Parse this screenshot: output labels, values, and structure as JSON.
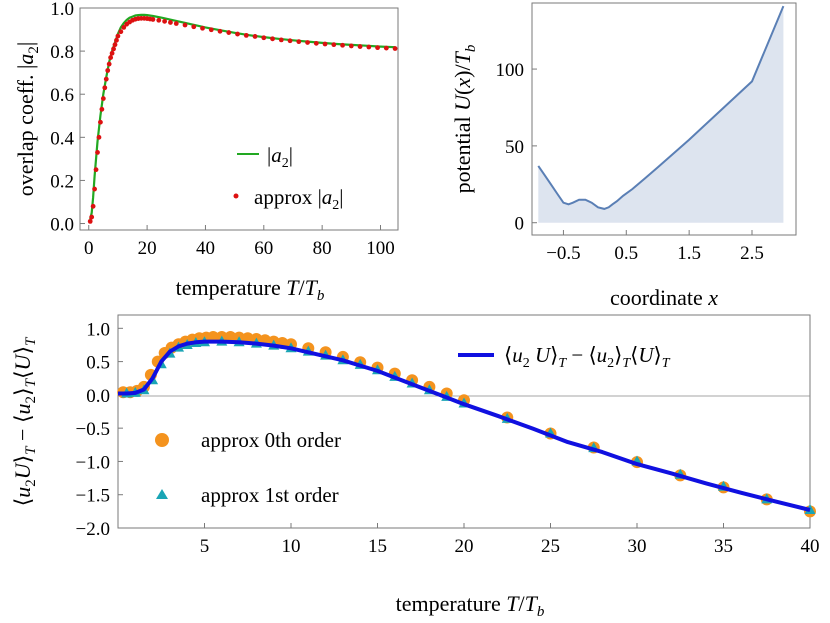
{
  "chart_data": [
    {
      "id": "overlap",
      "type": "scatter",
      "xlabel": "temperature T/T_b",
      "ylabel": "overlap coeff. |a_2|",
      "xlim": [
        -3,
        106
      ],
      "ylim": [
        -0.03,
        1.0
      ],
      "xticks": [
        "0",
        "20",
        "40",
        "60",
        "80",
        "100"
      ],
      "yticks": [
        "0.0",
        "0.2",
        "0.4",
        "0.6",
        "0.8",
        "1.0"
      ],
      "legend_position": "lower-right",
      "series": [
        {
          "name": "|a_2|",
          "kind": "line",
          "color": "#22a822",
          "x": [
            0.5,
            1,
            1.5,
            2,
            3,
            4,
            5,
            6,
            7,
            8,
            9,
            10,
            11,
            12,
            13,
            14,
            15,
            16,
            17,
            18,
            19,
            20,
            22,
            25,
            30,
            35,
            40,
            45,
            50,
            55,
            60,
            65,
            70,
            75,
            80,
            85,
            90,
            95,
            100,
            105
          ],
          "y": [
            0.02,
            0.05,
            0.12,
            0.22,
            0.38,
            0.5,
            0.6,
            0.68,
            0.75,
            0.8,
            0.84,
            0.88,
            0.91,
            0.93,
            0.945,
            0.955,
            0.96,
            0.965,
            0.967,
            0.968,
            0.968,
            0.967,
            0.963,
            0.955,
            0.94,
            0.925,
            0.91,
            0.897,
            0.885,
            0.874,
            0.865,
            0.857,
            0.85,
            0.844,
            0.838,
            0.833,
            0.829,
            0.825,
            0.821,
            0.818
          ]
        },
        {
          "name": "approx |a_2|",
          "kind": "points",
          "color": "#dd1111",
          "x": [
            0.5,
            1,
            1.5,
            2,
            2.5,
            3,
            3.5,
            4,
            4.5,
            5,
            5.5,
            6,
            6.5,
            7,
            7.5,
            8,
            8.5,
            9,
            9.5,
            10,
            11,
            12,
            13,
            14,
            15,
            16,
            17,
            18,
            19,
            20,
            21,
            22,
            24,
            26,
            28,
            30,
            33,
            36,
            39,
            42,
            45,
            48,
            51,
            54,
            57,
            60,
            63,
            66,
            69,
            72,
            75,
            78,
            81,
            84,
            87,
            90,
            93,
            96,
            99,
            102,
            105
          ],
          "y": [
            0.01,
            0.03,
            0.08,
            0.16,
            0.25,
            0.33,
            0.4,
            0.47,
            0.53,
            0.58,
            0.63,
            0.67,
            0.71,
            0.74,
            0.77,
            0.79,
            0.81,
            0.83,
            0.85,
            0.87,
            0.89,
            0.91,
            0.925,
            0.935,
            0.943,
            0.948,
            0.951,
            0.952,
            0.952,
            0.951,
            0.949,
            0.947,
            0.943,
            0.938,
            0.933,
            0.928,
            0.921,
            0.913,
            0.906,
            0.899,
            0.892,
            0.886,
            0.879,
            0.873,
            0.868,
            0.862,
            0.857,
            0.852,
            0.848,
            0.844,
            0.84,
            0.836,
            0.833,
            0.83,
            0.827,
            0.824,
            0.821,
            0.819,
            0.816,
            0.814,
            0.812
          ]
        }
      ]
    },
    {
      "id": "potential",
      "type": "area",
      "xlabel": "coordinate x",
      "ylabel": "potential U(x)/T_b",
      "xlim": [
        -1.0,
        3.2
      ],
      "ylim": [
        -8,
        143
      ],
      "xticks": [
        "-0.5",
        "0.5",
        "1.5",
        "2.5"
      ],
      "yticks": [
        "0",
        "50",
        "100"
      ],
      "series": [
        {
          "name": "U(x)",
          "color": "#5a7fb5",
          "fill": "#dde4ef",
          "x": [
            -0.9,
            -0.8,
            -0.7,
            -0.6,
            -0.5,
            -0.42,
            -0.35,
            -0.25,
            -0.15,
            -0.05,
            0.05,
            0.15,
            0.22,
            0.28,
            0.35,
            0.45,
            0.6,
            0.8,
            1.0,
            1.5,
            2.0,
            2.5,
            3.0
          ],
          "y": [
            37,
            31,
            25,
            19,
            13,
            12,
            13,
            15,
            15,
            13,
            10,
            9,
            10,
            12,
            14,
            17.5,
            22,
            29,
            36,
            54,
            73,
            92,
            141
          ]
        }
      ]
    },
    {
      "id": "covariance",
      "type": "line",
      "xlabel": "temperature T/T_b",
      "ylabel": "<u_2 U>_T - <u_2>_T <U>_T",
      "xlim": [
        0,
        40
      ],
      "ylim": [
        -2.0,
        1.2
      ],
      "xticks": [
        "5",
        "10",
        "15",
        "20",
        "25",
        "30",
        "35",
        "40"
      ],
      "yticks": [
        "1.0",
        "0.5",
        "0.0",
        "-0.5",
        "-1.0",
        "-1.5",
        "-2.0"
      ],
      "legend_position": "top-right and lower-left",
      "series": [
        {
          "name": "<u_2 U>_T - <u_2>_T <U>_T",
          "kind": "line",
          "color": "#1010e0",
          "x": [
            0,
            0.5,
            1,
            1.5,
            2,
            2.5,
            3,
            3.5,
            4,
            4.5,
            5,
            6,
            7,
            8,
            9,
            10,
            11,
            12,
            13,
            14,
            15,
            16,
            17,
            18,
            19,
            20,
            22,
            24,
            26,
            28,
            30,
            32,
            34,
            36,
            38,
            40
          ],
          "y": [
            0.02,
            0.02,
            0.03,
            0.08,
            0.25,
            0.5,
            0.65,
            0.73,
            0.77,
            0.79,
            0.8,
            0.8,
            0.79,
            0.77,
            0.74,
            0.7,
            0.64,
            0.58,
            0.52,
            0.44,
            0.36,
            0.26,
            0.16,
            0.06,
            -0.04,
            -0.14,
            -0.32,
            -0.51,
            -0.71,
            -0.86,
            -1.04,
            -1.18,
            -1.33,
            -1.47,
            -1.6,
            -1.73
          ]
        },
        {
          "name": "approx 0th order",
          "kind": "points",
          "marker": "circle",
          "color": "#f4931e",
          "x": [
            0.3,
            0.7,
            1.1,
            1.5,
            1.9,
            2.3,
            2.7,
            3.1,
            3.5,
            3.9,
            4.3,
            4.7,
            5.1,
            5.5,
            6,
            6.5,
            7,
            7.5,
            8,
            8.5,
            9,
            9.5,
            10,
            11,
            12,
            13,
            14,
            15,
            16,
            17,
            18,
            19,
            20,
            22.5,
            25,
            27.5,
            30,
            32.5,
            35,
            37.5,
            40
          ],
          "y": [
            0.04,
            0.04,
            0.06,
            0.12,
            0.3,
            0.5,
            0.63,
            0.71,
            0.76,
            0.8,
            0.83,
            0.85,
            0.86,
            0.87,
            0.87,
            0.87,
            0.86,
            0.85,
            0.84,
            0.82,
            0.8,
            0.78,
            0.76,
            0.7,
            0.64,
            0.57,
            0.49,
            0.41,
            0.32,
            0.22,
            0.12,
            0.02,
            -0.08,
            -0.34,
            -0.58,
            -0.79,
            -1.01,
            -1.21,
            -1.39,
            -1.57,
            -1.75
          ]
        },
        {
          "name": "approx 1st order",
          "kind": "points",
          "marker": "triangle",
          "color": "#1aa5b5",
          "x": [
            0.5,
            1,
            1.5,
            2,
            2.5,
            3,
            3.5,
            4,
            4.5,
            5,
            6,
            7,
            8,
            9,
            10,
            11,
            12,
            13,
            14,
            15,
            16,
            17,
            18,
            19,
            20,
            22.5,
            25,
            27.5,
            30,
            32.5,
            35,
            37.5,
            40
          ],
          "y": [
            0.02,
            0.03,
            0.07,
            0.22,
            0.46,
            0.62,
            0.71,
            0.75,
            0.78,
            0.79,
            0.8,
            0.79,
            0.77,
            0.74,
            0.7,
            0.65,
            0.59,
            0.52,
            0.45,
            0.37,
            0.27,
            0.17,
            0.07,
            -0.03,
            -0.13,
            -0.36,
            -0.58,
            -0.8,
            -1.0,
            -1.2,
            -1.38,
            -1.57,
            -1.73
          ]
        }
      ]
    }
  ]
}
